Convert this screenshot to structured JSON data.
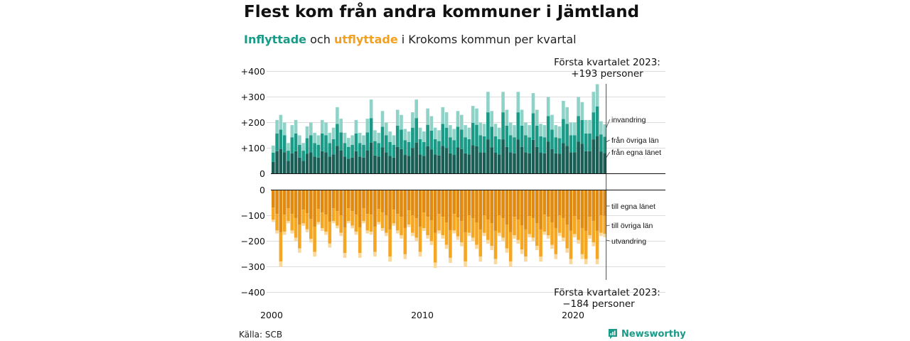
{
  "title": "Flest kom från andra kommuner i Jämtland",
  "subtitle": {
    "in_word": "Inflyttade",
    "mid": " och ",
    "out_word": "utflyttade",
    "rest": " i Krokoms kommun per kvartal"
  },
  "source": "Källa: SCB",
  "brand": "Newsworthy",
  "colors": {
    "in_egna": "#1a5e55",
    "in_ovriga": "#1a9a87",
    "in_invandring": "#8fd3c8",
    "out_egna": "#e08a12",
    "out_ovriga": "#f5a623",
    "out_utvandring": "#fad79a",
    "grid": "#dddddd",
    "axis": "#111111"
  },
  "chart_data": {
    "type": "bar",
    "stacked": true,
    "x_start": "2000 Q1",
    "x_ticks": [
      "2000",
      "2010",
      "2020"
    ],
    "y_ticks_upper": [
      "+400",
      "+300",
      "+200",
      "+100",
      "0"
    ],
    "y_ticks_lower": [
      "0",
      "−100",
      "−200",
      "−300",
      "−400"
    ],
    "ylim_upper": [
      0,
      400
    ],
    "ylim_lower": [
      -400,
      0
    ],
    "series_labels": {
      "in_egna": "från egna länet",
      "in_ovriga": "från övriga län",
      "in_invandring": "invandring",
      "out_egna": "till egna länet",
      "out_ovriga": "till övriga län",
      "out_utvandring": "utvandring"
    },
    "annotation_top": [
      "Första kvartalet 2023:",
      "+193 personer"
    ],
    "annotation_bottom": [
      "Första kvartalet 2023:",
      "−184 personer"
    ],
    "inflow_totals": [
      110,
      210,
      230,
      200,
      120,
      190,
      210,
      150,
      120,
      185,
      200,
      160,
      150,
      210,
      200,
      160,
      180,
      260,
      215,
      160,
      140,
      150,
      210,
      160,
      150,
      215,
      290,
      170,
      160,
      245,
      200,
      165,
      150,
      250,
      230,
      175,
      165,
      240,
      290,
      180,
      165,
      255,
      225,
      180,
      170,
      260,
      240,
      190,
      175,
      245,
      230,
      190,
      180,
      265,
      255,
      200,
      195,
      320,
      245,
      195,
      180,
      320,
      250,
      200,
      190,
      320,
      250,
      200,
      190,
      315,
      250,
      195,
      190,
      300,
      230,
      190,
      185,
      285,
      260,
      200,
      200,
      300,
      280,
      210,
      210,
      320,
      350,
      205,
      193
    ],
    "outflow_totals": [
      -125,
      -170,
      -300,
      -175,
      -130,
      -170,
      -200,
      -245,
      -140,
      -165,
      -205,
      -260,
      -135,
      -160,
      -175,
      -225,
      -130,
      -150,
      -180,
      -265,
      -130,
      -150,
      -175,
      -265,
      -130,
      -170,
      -175,
      -260,
      -135,
      -160,
      -180,
      -280,
      -140,
      -170,
      -190,
      -270,
      -145,
      -180,
      -200,
      -260,
      -160,
      -190,
      -215,
      -305,
      -170,
      -190,
      -230,
      -285,
      -170,
      -195,
      -220,
      -300,
      -180,
      -200,
      -230,
      -280,
      -180,
      -210,
      -235,
      -290,
      -180,
      -200,
      -245,
      -300,
      -190,
      -210,
      -250,
      -280,
      -185,
      -200,
      -235,
      -280,
      -175,
      -190,
      -230,
      -270,
      -180,
      -200,
      -245,
      -290,
      -185,
      -210,
      -270,
      -290,
      -190,
      -220,
      -290,
      -180,
      -184
    ]
  }
}
